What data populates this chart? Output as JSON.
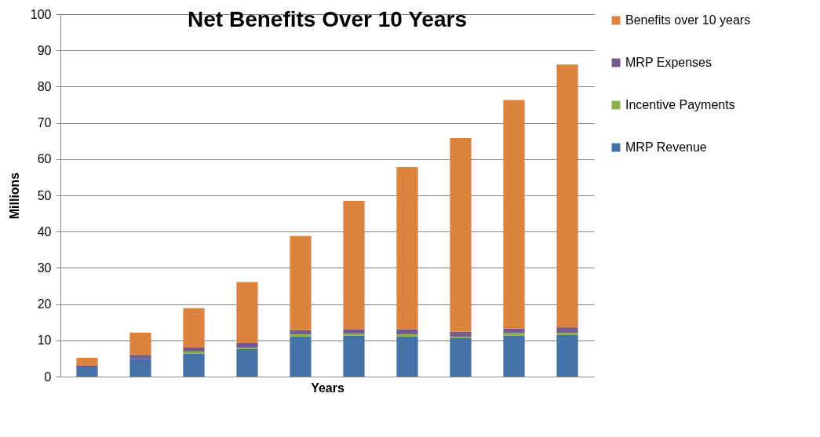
{
  "chart_data": {
    "type": "bar",
    "title": "Net Benefits Over 10 Years",
    "xlabel": "Years",
    "ylabel": "Millions",
    "stacked": true,
    "categories": [
      null,
      null,
      null,
      null,
      null,
      null,
      null,
      null,
      null,
      null
    ],
    "series": [
      {
        "name": "MRP Revenue",
        "color": "#4572a7",
        "values": [
          2.6,
          4.9,
          6.4,
          7.6,
          11.1,
          11.3,
          11.1,
          10.6,
          11.3,
          11.5
        ]
      },
      {
        "name": "Incentive Payments",
        "color": "#8db04d",
        "values": [
          null,
          null,
          0.5,
          0.4,
          0.6,
          0.5,
          0.6,
          0.4,
          0.7,
          0.6
        ]
      },
      {
        "name": "MRP Expenses",
        "color": "#755a8f",
        "values": [
          0.5,
          1.1,
          1.1,
          1.3,
          1.1,
          1.3,
          1.4,
          1.4,
          1.3,
          1.5
        ]
      },
      {
        "name": "Benefits over 10 years",
        "color": "#dc843e",
        "values": [
          2.1,
          6.1,
          10.9,
          16.8,
          26.0,
          35.4,
          44.7,
          53.4,
          63.0,
          72.5
        ]
      }
    ],
    "ylim": [
      0,
      100
    ],
    "yticks": [
      0,
      10,
      20,
      30,
      40,
      50,
      60,
      70,
      80,
      90,
      100
    ],
    "grid": "y",
    "legend": "right",
    "tick_labels": "y"
  }
}
